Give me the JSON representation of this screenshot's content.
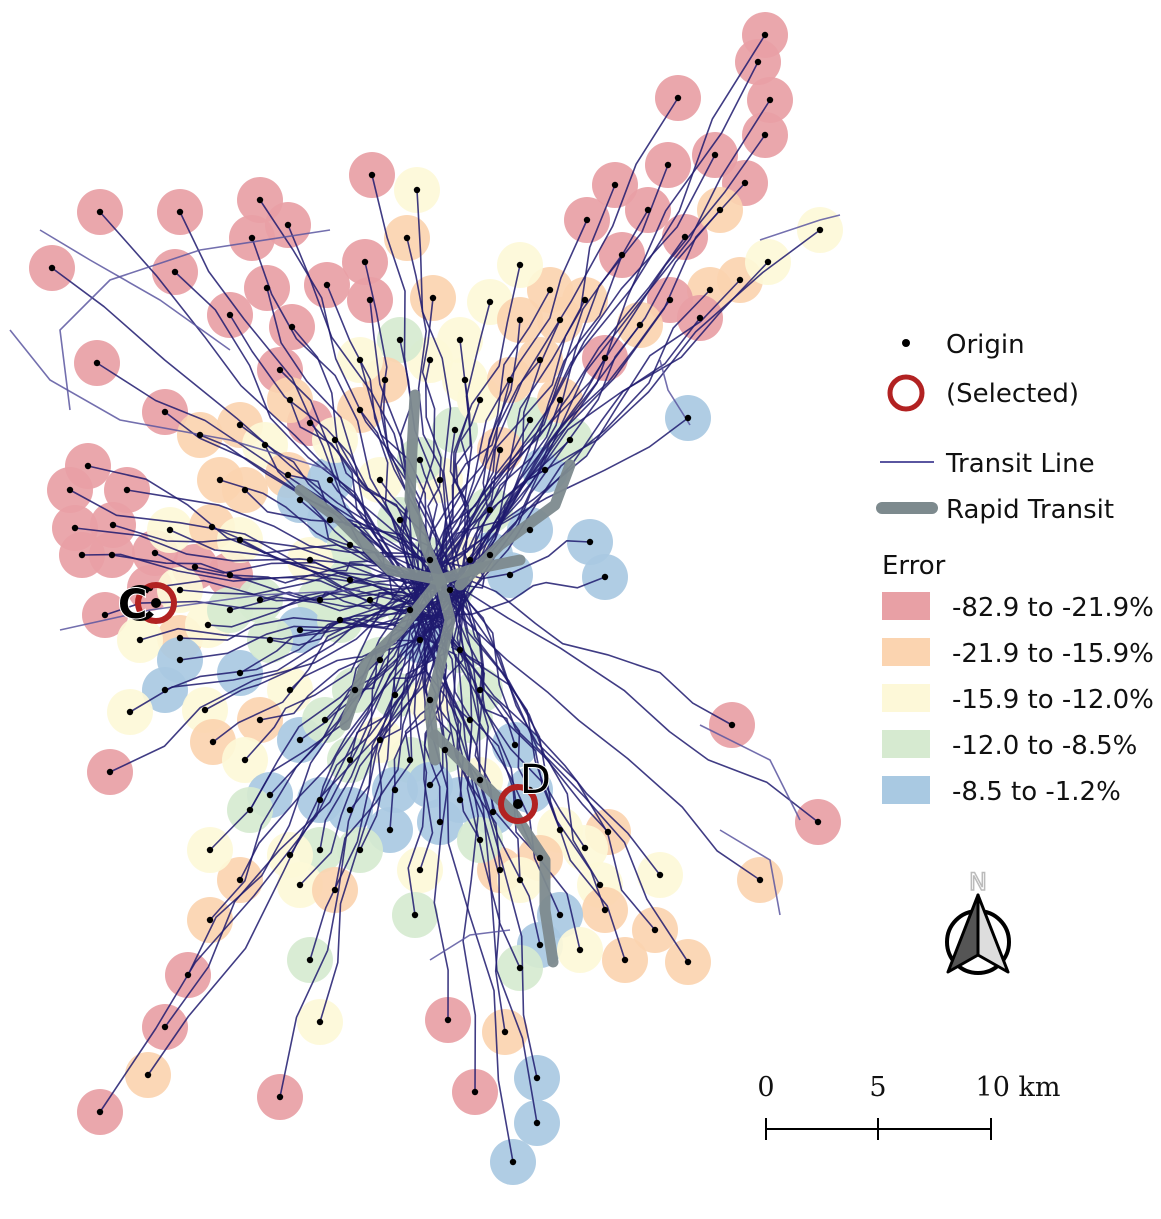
{
  "legend": {
    "origin_label": "Origin",
    "selected_label": "(Selected)",
    "transit_line_label": "Transit Line",
    "rapid_transit_label": "Rapid Transit",
    "error_title": "Error",
    "classes": [
      {
        "label": "-82.9 to -21.9%",
        "color": "#e8a0a5"
      },
      {
        "label": "-21.9 to -15.9%",
        "color": "#fbd4b0"
      },
      {
        "label": "-15.9 to -12.0%",
        "color": "#fdf8d8"
      },
      {
        "label": "-12.0 to -8.5%",
        "color": "#d6ead0"
      },
      {
        "label": "-8.5 to -1.2%",
        "color": "#a9c9e2"
      }
    ]
  },
  "markers": {
    "c_label": "C",
    "d_label": "D"
  },
  "north_arrow": {
    "label": "N"
  },
  "scale_bar": {
    "ticks": [
      "0",
      "5",
      "10 km"
    ]
  },
  "colors": {
    "transit_line": "#1e1a6e",
    "rapid_transit": "#7d8a8e",
    "selected_ring": "#b22222",
    "origin_dot": "#000000"
  }
}
